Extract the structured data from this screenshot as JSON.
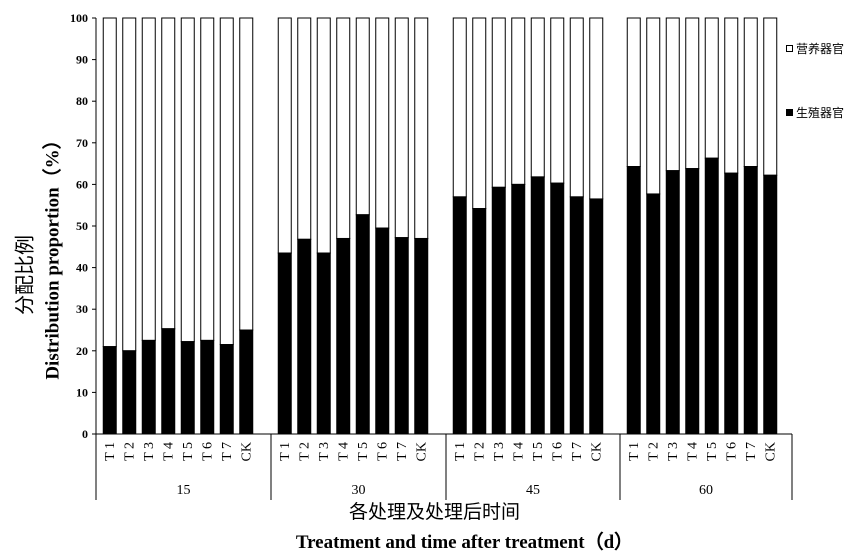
{
  "chart_data": {
    "type": "bar",
    "stacked": true,
    "y_ticks": [
      "0",
      "10",
      "20",
      "30",
      "40",
      "50",
      "60",
      "70",
      "80",
      "90",
      "100"
    ],
    "ylim": [
      0,
      100
    ],
    "ylabel_cn": "分配比例",
    "ylabel_en": "Distribution proportion（%）",
    "xlabel_cn": "各处理及处理后时间",
    "xlabel_en": "Treatment and time after treatment（d）",
    "groups": [
      {
        "label": "15",
        "categories": [
          "T 1",
          "T 2",
          "T 3",
          "T 4",
          "T 5",
          "T 6",
          "T 7",
          "CK"
        ],
        "reproductive": [
          21,
          20,
          22.5,
          25.3,
          22.2,
          22.5,
          21.5,
          25
        ]
      },
      {
        "label": "30",
        "categories": [
          "T 1",
          "T 2",
          "T 3",
          "T 4",
          "T 5",
          "T 6",
          "T 7",
          "CK"
        ],
        "reproductive": [
          43.5,
          46.8,
          43.5,
          47,
          52.7,
          49.5,
          47.2,
          47
        ]
      },
      {
        "label": "45",
        "categories": [
          "T 1",
          "T 2",
          "T 3",
          "T 4",
          "T 5",
          "T 6",
          "T 7",
          "CK"
        ],
        "reproductive": [
          57,
          54.2,
          59.3,
          60,
          61.8,
          60.3,
          57,
          56.5
        ]
      },
      {
        "label": "60",
        "categories": [
          "T 1",
          "T 2",
          "T 3",
          "T 4",
          "T 5",
          "T 6",
          "T 7",
          "CK"
        ],
        "reproductive": [
          64.3,
          57.7,
          63.3,
          63.8,
          66.3,
          62.7,
          64.3,
          62.2
        ]
      }
    ],
    "series": [
      {
        "name": "营养器官",
        "color": "#ffffff"
      },
      {
        "name": "生殖器官",
        "color": "#000000"
      }
    ],
    "legend_position": "right"
  }
}
